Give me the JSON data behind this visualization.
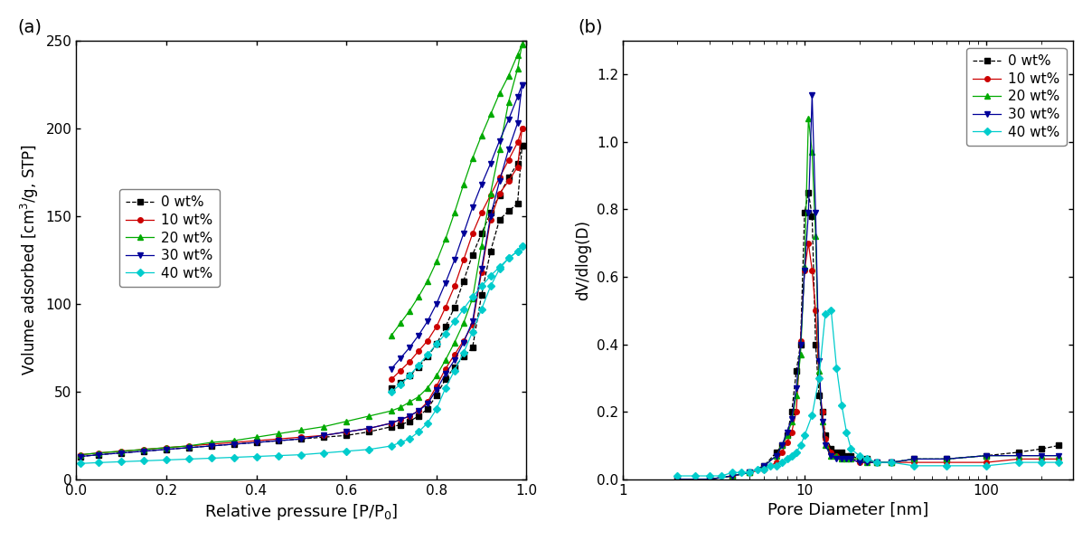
{
  "panel_a": {
    "xlabel": "Relative pressure [P/P$_0$]",
    "ylabel": "Volume adsorbed [cm$^3$/g, STP]",
    "xlim": [
      0.0,
      1.0
    ],
    "ylim": [
      0,
      250
    ],
    "yticks": [
      0,
      50,
      100,
      150,
      200,
      250
    ],
    "xticks": [
      0.0,
      0.2,
      0.4,
      0.6,
      0.8,
      1.0
    ],
    "series": [
      {
        "label": "0 wt%",
        "color": "#000000",
        "marker": "s",
        "linestyle": "--",
        "ads_x": [
          0.01,
          0.05,
          0.1,
          0.15,
          0.2,
          0.25,
          0.3,
          0.35,
          0.4,
          0.45,
          0.5,
          0.55,
          0.6,
          0.65,
          0.7,
          0.72,
          0.74,
          0.76,
          0.78,
          0.8,
          0.82,
          0.84,
          0.86,
          0.88,
          0.9,
          0.92,
          0.94,
          0.96,
          0.98,
          0.99
        ],
        "ads_y": [
          13,
          14,
          15,
          16,
          17,
          18,
          19,
          20,
          21,
          22,
          23,
          24,
          25,
          27,
          30,
          31,
          33,
          36,
          40,
          48,
          57,
          64,
          70,
          75,
          105,
          130,
          148,
          153,
          157,
          190
        ],
        "des_x": [
          0.99,
          0.98,
          0.96,
          0.94,
          0.92,
          0.9,
          0.88,
          0.86,
          0.84,
          0.82,
          0.8,
          0.78,
          0.76,
          0.74,
          0.72,
          0.7
        ],
        "des_y": [
          190,
          180,
          172,
          162,
          152,
          140,
          128,
          113,
          98,
          87,
          77,
          70,
          64,
          59,
          55,
          52
        ]
      },
      {
        "label": "10 wt%",
        "color": "#cc0000",
        "marker": "o",
        "linestyle": "-",
        "ads_x": [
          0.01,
          0.05,
          0.1,
          0.15,
          0.2,
          0.25,
          0.3,
          0.35,
          0.4,
          0.45,
          0.5,
          0.55,
          0.6,
          0.65,
          0.7,
          0.72,
          0.74,
          0.76,
          0.78,
          0.8,
          0.82,
          0.84,
          0.86,
          0.88,
          0.9,
          0.92,
          0.94,
          0.96,
          0.98,
          0.99
        ],
        "ads_y": [
          14,
          15,
          16,
          17,
          18,
          19,
          20,
          21,
          22,
          23,
          24,
          25,
          27,
          29,
          32,
          34,
          36,
          39,
          44,
          53,
          63,
          71,
          79,
          88,
          118,
          148,
          163,
          170,
          178,
          200
        ],
        "des_x": [
          0.99,
          0.98,
          0.96,
          0.94,
          0.92,
          0.9,
          0.88,
          0.86,
          0.84,
          0.82,
          0.8,
          0.78,
          0.76,
          0.74,
          0.72,
          0.7
        ],
        "des_y": [
          200,
          192,
          182,
          172,
          162,
          152,
          140,
          125,
          110,
          98,
          87,
          79,
          73,
          67,
          62,
          57
        ]
      },
      {
        "label": "20 wt%",
        "color": "#00aa00",
        "marker": "^",
        "linestyle": "-",
        "ads_x": [
          0.01,
          0.05,
          0.1,
          0.15,
          0.2,
          0.25,
          0.3,
          0.35,
          0.4,
          0.45,
          0.5,
          0.55,
          0.6,
          0.65,
          0.7,
          0.72,
          0.74,
          0.76,
          0.78,
          0.8,
          0.82,
          0.84,
          0.86,
          0.88,
          0.9,
          0.92,
          0.94,
          0.96,
          0.98,
          0.99
        ],
        "ads_y": [
          14,
          15,
          16,
          17,
          18,
          19,
          21,
          22,
          24,
          26,
          28,
          30,
          33,
          36,
          39,
          41,
          44,
          47,
          52,
          59,
          68,
          78,
          89,
          103,
          133,
          163,
          188,
          215,
          234,
          248
        ],
        "des_x": [
          0.99,
          0.98,
          0.96,
          0.94,
          0.92,
          0.9,
          0.88,
          0.86,
          0.84,
          0.82,
          0.8,
          0.78,
          0.76,
          0.74,
          0.72,
          0.7
        ],
        "des_y": [
          248,
          242,
          230,
          220,
          208,
          196,
          183,
          168,
          152,
          137,
          124,
          113,
          104,
          96,
          89,
          82
        ]
      },
      {
        "label": "30 wt%",
        "color": "#000099",
        "marker": "v",
        "linestyle": "-",
        "ads_x": [
          0.01,
          0.05,
          0.1,
          0.15,
          0.2,
          0.25,
          0.3,
          0.35,
          0.4,
          0.45,
          0.5,
          0.55,
          0.6,
          0.65,
          0.7,
          0.72,
          0.74,
          0.76,
          0.78,
          0.8,
          0.82,
          0.84,
          0.86,
          0.88,
          0.9,
          0.92,
          0.94,
          0.96,
          0.98,
          0.99
        ],
        "ads_y": [
          13,
          14,
          15,
          16,
          17,
          18,
          19,
          20,
          21,
          22,
          23,
          25,
          27,
          29,
          32,
          34,
          36,
          39,
          43,
          51,
          60,
          68,
          78,
          90,
          120,
          150,
          170,
          188,
          203,
          225
        ],
        "des_x": [
          0.99,
          0.98,
          0.96,
          0.94,
          0.92,
          0.9,
          0.88,
          0.86,
          0.84,
          0.82,
          0.8,
          0.78,
          0.76,
          0.74,
          0.72,
          0.7
        ],
        "des_y": [
          225,
          218,
          205,
          193,
          180,
          168,
          155,
          140,
          125,
          112,
          100,
          90,
          82,
          75,
          69,
          63
        ]
      },
      {
        "label": "40 wt%",
        "color": "#00cccc",
        "marker": "D",
        "linestyle": "-",
        "ads_x": [
          0.01,
          0.05,
          0.1,
          0.15,
          0.2,
          0.25,
          0.3,
          0.35,
          0.4,
          0.45,
          0.5,
          0.55,
          0.6,
          0.65,
          0.7,
          0.72,
          0.74,
          0.76,
          0.78,
          0.8,
          0.82,
          0.84,
          0.86,
          0.88,
          0.9,
          0.92,
          0.94,
          0.96,
          0.98,
          0.99
        ],
        "ads_y": [
          9,
          9.5,
          10,
          10.5,
          11,
          11.5,
          12,
          12.5,
          13,
          13.5,
          14,
          15,
          16,
          17,
          19,
          21,
          23,
          27,
          32,
          40,
          52,
          62,
          72,
          84,
          97,
          110,
          120,
          126,
          130,
          133
        ],
        "des_x": [
          0.99,
          0.98,
          0.96,
          0.94,
          0.92,
          0.9,
          0.88,
          0.86,
          0.84,
          0.82,
          0.8,
          0.78,
          0.76,
          0.74,
          0.72,
          0.7
        ],
        "des_y": [
          133,
          130,
          126,
          121,
          116,
          110,
          104,
          97,
          90,
          83,
          77,
          71,
          65,
          59,
          54,
          50
        ]
      }
    ]
  },
  "panel_b": {
    "xlabel": "Pore Diameter [nm]",
    "ylabel": "dV/dlog(D)",
    "xlim": [
      1,
      300
    ],
    "ylim": [
      0,
      1.3
    ],
    "yticks": [
      0.0,
      0.2,
      0.4,
      0.6,
      0.8,
      1.0,
      1.2
    ],
    "series": [
      {
        "label": "0 wt%",
        "color": "#000000",
        "marker": "s",
        "linestyle": "--",
        "x": [
          2.0,
          3.0,
          4.0,
          5.0,
          6.0,
          7.0,
          7.5,
          8.0,
          8.5,
          9.0,
          9.5,
          10.0,
          10.5,
          11.0,
          11.5,
          12.0,
          12.5,
          13.0,
          14.0,
          15.0,
          16.0,
          17.0,
          18.0,
          20.0,
          22.0,
          25.0,
          30.0,
          40.0,
          60.0,
          100.0,
          150.0,
          200.0,
          250.0
        ],
        "y": [
          0.0,
          0.0,
          0.01,
          0.02,
          0.04,
          0.08,
          0.1,
          0.13,
          0.2,
          0.32,
          0.4,
          0.79,
          0.85,
          0.78,
          0.4,
          0.25,
          0.2,
          0.13,
          0.09,
          0.08,
          0.08,
          0.07,
          0.07,
          0.06,
          0.06,
          0.05,
          0.05,
          0.06,
          0.06,
          0.07,
          0.08,
          0.09,
          0.1
        ]
      },
      {
        "label": "10 wt%",
        "color": "#cc0000",
        "marker": "o",
        "linestyle": "-",
        "x": [
          2.0,
          3.0,
          4.0,
          5.0,
          6.0,
          7.0,
          7.5,
          8.0,
          8.5,
          9.0,
          9.5,
          10.0,
          10.5,
          11.0,
          11.5,
          12.0,
          12.5,
          13.0,
          14.0,
          15.0,
          16.0,
          17.0,
          18.0,
          20.0,
          22.0,
          25.0,
          30.0,
          40.0,
          60.0,
          100.0,
          150.0,
          200.0,
          250.0
        ],
        "y": [
          0.0,
          0.0,
          0.01,
          0.02,
          0.03,
          0.05,
          0.08,
          0.11,
          0.14,
          0.2,
          0.41,
          0.62,
          0.7,
          0.62,
          0.5,
          0.3,
          0.2,
          0.12,
          0.08,
          0.07,
          0.06,
          0.06,
          0.06,
          0.05,
          0.05,
          0.05,
          0.05,
          0.05,
          0.05,
          0.05,
          0.06,
          0.06,
          0.06
        ]
      },
      {
        "label": "20 wt%",
        "color": "#00aa00",
        "marker": "^",
        "linestyle": "-",
        "x": [
          2.0,
          3.0,
          4.0,
          5.0,
          6.0,
          7.0,
          7.5,
          8.0,
          8.5,
          9.0,
          9.5,
          10.0,
          10.5,
          11.0,
          11.5,
          12.0,
          12.5,
          13.0,
          14.0,
          15.0,
          16.0,
          17.0,
          18.0,
          20.0,
          22.0,
          25.0,
          30.0,
          40.0,
          60.0,
          100.0,
          150.0,
          200.0,
          250.0
        ],
        "y": [
          0.0,
          0.0,
          0.01,
          0.02,
          0.04,
          0.07,
          0.1,
          0.13,
          0.17,
          0.25,
          0.37,
          0.63,
          1.07,
          0.97,
          0.72,
          0.32,
          0.17,
          0.1,
          0.07,
          0.07,
          0.06,
          0.06,
          0.06,
          0.06,
          0.05,
          0.05,
          0.05,
          0.06,
          0.06,
          0.07,
          0.07,
          0.07,
          0.07
        ]
      },
      {
        "label": "30 wt%",
        "color": "#000099",
        "marker": "v",
        "linestyle": "-",
        "x": [
          2.0,
          3.0,
          4.0,
          5.0,
          6.0,
          7.0,
          7.5,
          8.0,
          8.5,
          9.0,
          9.5,
          10.0,
          10.5,
          11.0,
          11.5,
          12.0,
          12.5,
          13.0,
          14.0,
          15.0,
          16.0,
          17.0,
          18.0,
          20.0,
          22.0,
          25.0,
          30.0,
          40.0,
          60.0,
          100.0,
          150.0,
          200.0,
          250.0
        ],
        "y": [
          0.0,
          0.0,
          0.01,
          0.02,
          0.04,
          0.07,
          0.1,
          0.14,
          0.18,
          0.27,
          0.4,
          0.62,
          0.79,
          1.14,
          0.79,
          0.35,
          0.17,
          0.1,
          0.07,
          0.06,
          0.06,
          0.06,
          0.06,
          0.05,
          0.05,
          0.05,
          0.05,
          0.06,
          0.06,
          0.07,
          0.07,
          0.07,
          0.07
        ]
      },
      {
        "label": "40 wt%",
        "color": "#00cccc",
        "marker": "D",
        "linestyle": "-",
        "x": [
          2.0,
          2.5,
          3.0,
          3.5,
          4.0,
          4.5,
          5.0,
          5.5,
          6.0,
          6.5,
          7.0,
          7.5,
          8.0,
          8.5,
          9.0,
          9.5,
          10.0,
          11.0,
          12.0,
          13.0,
          14.0,
          15.0,
          16.0,
          17.0,
          18.0,
          20.0,
          22.0,
          25.0,
          30.0,
          40.0,
          60.0,
          100.0,
          150.0,
          200.0,
          250.0
        ],
        "y": [
          0.01,
          0.01,
          0.01,
          0.01,
          0.02,
          0.02,
          0.02,
          0.03,
          0.03,
          0.04,
          0.04,
          0.05,
          0.06,
          0.07,
          0.08,
          0.1,
          0.13,
          0.19,
          0.3,
          0.49,
          0.5,
          0.33,
          0.22,
          0.14,
          0.09,
          0.07,
          0.06,
          0.05,
          0.05,
          0.04,
          0.04,
          0.04,
          0.05,
          0.05,
          0.05
        ]
      }
    ]
  }
}
